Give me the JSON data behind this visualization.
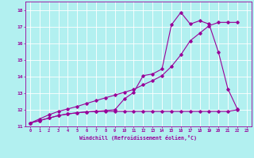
{
  "background_color": "#b2f0f0",
  "grid_color": "#ffffff",
  "line_color": "#990099",
  "xlim": [
    -0.5,
    23.5
  ],
  "ylim": [
    11,
    18.5
  ],
  "xticks": [
    0,
    1,
    2,
    3,
    4,
    5,
    6,
    7,
    8,
    9,
    10,
    11,
    12,
    13,
    14,
    15,
    16,
    17,
    18,
    19,
    20,
    21,
    22,
    23
  ],
  "yticks": [
    11,
    12,
    13,
    14,
    15,
    16,
    17,
    18
  ],
  "xlabel": "Windchill (Refroidissement éolien,°C)",
  "line1_x": [
    0,
    1,
    2,
    3,
    4,
    5,
    6,
    7,
    8,
    9,
    10,
    11,
    12,
    13,
    14,
    15,
    16,
    17,
    18,
    19,
    20,
    21,
    22
  ],
  "line1_y": [
    11.2,
    11.35,
    11.5,
    11.65,
    11.75,
    11.82,
    11.87,
    11.9,
    11.9,
    11.9,
    11.9,
    11.9,
    11.9,
    11.9,
    11.9,
    11.9,
    11.9,
    11.9,
    11.9,
    11.9,
    11.9,
    11.9,
    12.0
  ],
  "line2_x": [
    0,
    1,
    2,
    3,
    4,
    5,
    6,
    7,
    8,
    9,
    10,
    11,
    12,
    13,
    14,
    15,
    16,
    17,
    18,
    19,
    20,
    21,
    22
  ],
  "line2_y": [
    11.2,
    11.45,
    11.7,
    11.9,
    12.05,
    12.2,
    12.38,
    12.55,
    12.72,
    12.88,
    13.05,
    13.22,
    13.5,
    13.75,
    14.05,
    14.6,
    15.3,
    16.15,
    16.6,
    17.05,
    17.25,
    17.25,
    17.25
  ],
  "line3_x": [
    0,
    1,
    2,
    3,
    4,
    5,
    6,
    7,
    8,
    9,
    10,
    11,
    12,
    13,
    14,
    15,
    16,
    17,
    18,
    19,
    20,
    21,
    22
  ],
  "line3_y": [
    11.2,
    11.35,
    11.5,
    11.65,
    11.75,
    11.82,
    11.87,
    11.9,
    11.95,
    12.0,
    12.65,
    13.05,
    14.05,
    14.15,
    14.45,
    17.1,
    17.85,
    17.15,
    17.35,
    17.15,
    15.45,
    13.25,
    12.05
  ]
}
